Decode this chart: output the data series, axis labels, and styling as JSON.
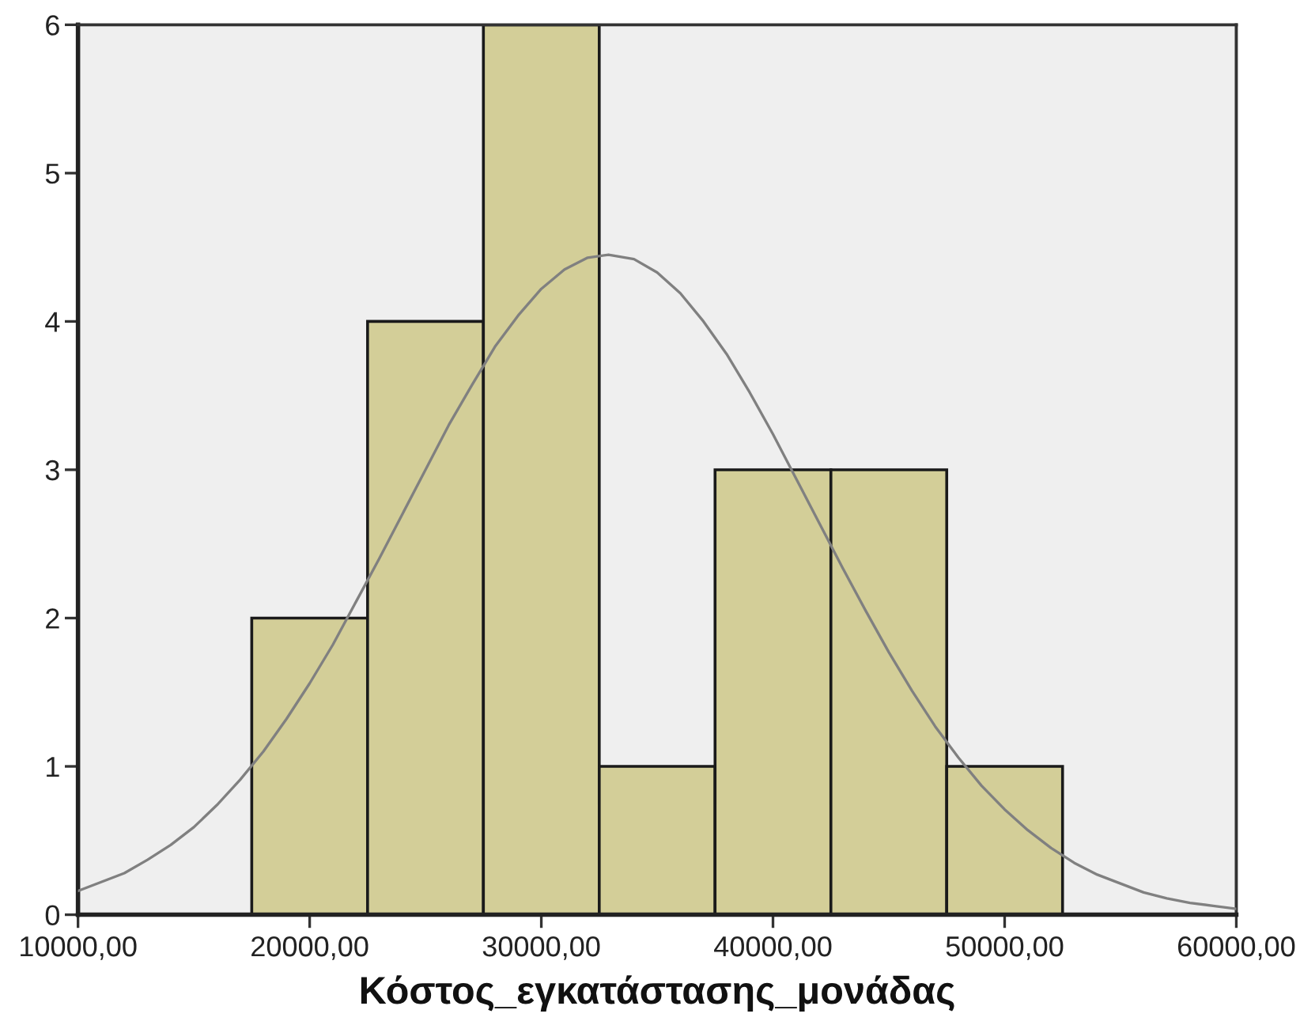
{
  "chart_data": {
    "type": "histogram",
    "xlabel": "Κόστος_εγκατάστασης_μονάδας",
    "series": [
      {
        "color": "#d3ce98",
        "bins": [
          17500,
          22500,
          27500,
          32500,
          37500,
          42500,
          47500,
          52500
        ],
        "values": [
          2,
          4,
          6,
          1,
          3,
          3,
          1
        ]
      },
      {
        "type": "line",
        "color": "#808080",
        "x": [
          10000,
          11000,
          12000,
          13000,
          14000,
          15000,
          16000,
          17000,
          18000,
          19000,
          20000,
          21000,
          22000,
          23000,
          24000,
          25000,
          26000,
          27000,
          28000,
          29000,
          30000,
          31000,
          32000,
          32900,
          34000,
          35000,
          36000,
          37000,
          38000,
          39000,
          40000,
          41000,
          42000,
          43000,
          44000,
          45000,
          46000,
          47000,
          48000,
          49000,
          50000,
          51000,
          52000,
          53000,
          54000,
          55000,
          56000,
          57000,
          58000,
          59000,
          60000
        ],
        "values": [
          0.16,
          0.22,
          0.28,
          0.37,
          0.47,
          0.59,
          0.74,
          0.91,
          1.1,
          1.32,
          1.56,
          1.82,
          2.11,
          2.4,
          2.7,
          3.0,
          3.3,
          3.57,
          3.83,
          4.04,
          4.22,
          4.35,
          4.43,
          4.45,
          4.42,
          4.33,
          4.19,
          4.0,
          3.78,
          3.52,
          3.24,
          2.94,
          2.64,
          2.34,
          2.05,
          1.77,
          1.51,
          1.27,
          1.06,
          0.87,
          0.71,
          0.57,
          0.45,
          0.35,
          0.27,
          0.21,
          0.15,
          0.11,
          0.08,
          0.06,
          0.04
        ]
      }
    ],
    "xlim": [
      10000,
      60000
    ],
    "xticks": [
      {
        "value": 10000,
        "label": "10000,00"
      },
      {
        "value": 20000,
        "label": "20000,00"
      },
      {
        "value": 30000,
        "label": "30000,00"
      },
      {
        "value": 40000,
        "label": "40000,00"
      },
      {
        "value": 50000,
        "label": "50000,00"
      },
      {
        "value": 60000,
        "label": "60000,00"
      }
    ],
    "ylim": [
      0,
      6
    ],
    "yticks": [
      0,
      1,
      2,
      3,
      4,
      5,
      6
    ],
    "grid": false,
    "legend": false
  }
}
